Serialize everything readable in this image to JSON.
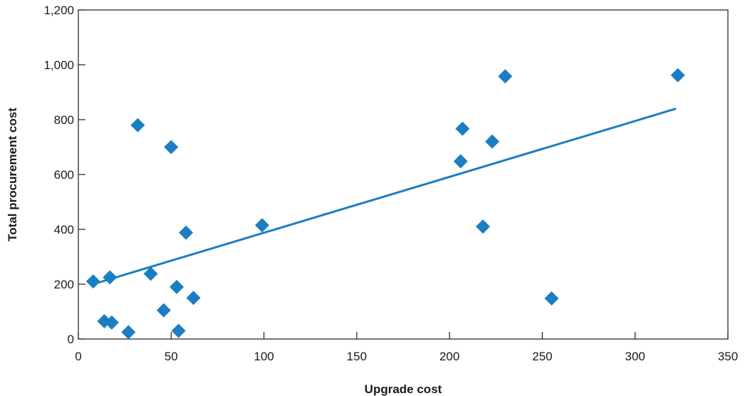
{
  "chart_data": {
    "type": "scatter",
    "title": "",
    "xlabel": "Upgrade cost",
    "ylabel": "Total procurement cost",
    "xlim": [
      0,
      350
    ],
    "ylim": [
      0,
      1200
    ],
    "x_ticks": [
      0,
      50,
      100,
      150,
      200,
      250,
      300,
      350
    ],
    "x_tick_labels": [
      "0",
      "50",
      "100",
      "150",
      "200",
      "250",
      "300",
      "350"
    ],
    "y_ticks": [
      0,
      200,
      400,
      600,
      800,
      1000,
      1200
    ],
    "y_tick_labels": [
      "0",
      "200",
      "400",
      "600",
      "800",
      "1,000",
      "1,200"
    ],
    "grid": false,
    "legend": "none",
    "marker": "diamond",
    "marker_color": "#1b7ec2",
    "line_color": "#1b7ec2",
    "points": [
      {
        "x": 8,
        "y": 210
      },
      {
        "x": 14,
        "y": 65
      },
      {
        "x": 17,
        "y": 225
      },
      {
        "x": 18,
        "y": 60
      },
      {
        "x": 27,
        "y": 25
      },
      {
        "x": 32,
        "y": 780
      },
      {
        "x": 39,
        "y": 238
      },
      {
        "x": 46,
        "y": 105
      },
      {
        "x": 50,
        "y": 700
      },
      {
        "x": 53,
        "y": 190
      },
      {
        "x": 54,
        "y": 30
      },
      {
        "x": 58,
        "y": 388
      },
      {
        "x": 62,
        "y": 150
      },
      {
        "x": 99,
        "y": 415
      },
      {
        "x": 206,
        "y": 648
      },
      {
        "x": 207,
        "y": 767
      },
      {
        "x": 218,
        "y": 410
      },
      {
        "x": 223,
        "y": 720
      },
      {
        "x": 230,
        "y": 958
      },
      {
        "x": 255,
        "y": 148
      },
      {
        "x": 323,
        "y": 962
      }
    ],
    "trend_line": {
      "x": [
        8,
        322
      ],
      "y": [
        200,
        840
      ]
    }
  }
}
